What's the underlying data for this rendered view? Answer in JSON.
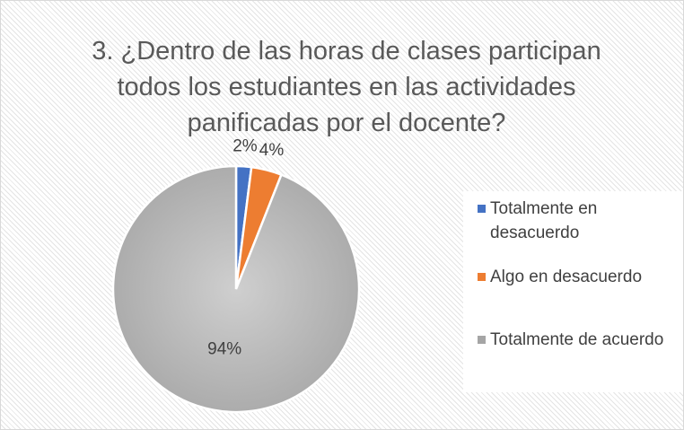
{
  "chart_data": {
    "type": "pie",
    "title": "3. ¿Dentro de las horas de clases participan todos los estudiantes en las actividades panificadas por el docente?",
    "categories": [
      "Totalmente en desacuerdo",
      "Algo en desacuerdo",
      "Totalmente de acuerdo"
    ],
    "values": [
      2,
      4,
      94
    ],
    "value_labels": [
      "2%",
      "4%",
      "94%"
    ],
    "colors": [
      "#4472c4",
      "#ed7d31",
      "#a5a5a5"
    ],
    "legend": "right"
  }
}
